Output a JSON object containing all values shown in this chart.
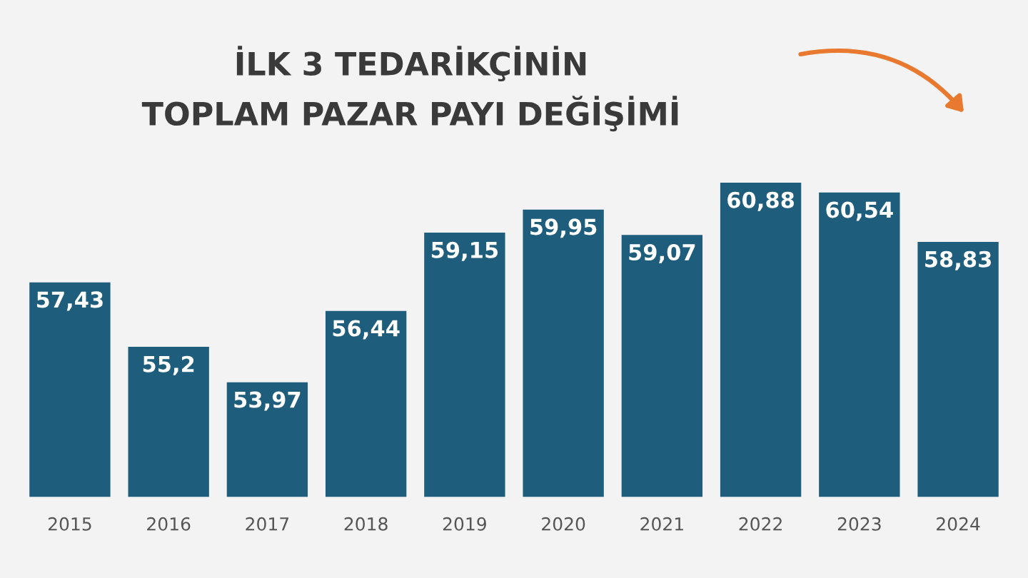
{
  "chart_data": {
    "type": "bar",
    "title": "İLK 3 TEDARİKÇİNİN\nTOPLAM PAZAR PAYI DEĞİŞİMİ",
    "categories": [
      "2015",
      "2016",
      "2017",
      "2018",
      "2019",
      "2020",
      "2021",
      "2022",
      "2023",
      "2024"
    ],
    "values": [
      57.43,
      55.2,
      53.97,
      56.44,
      59.15,
      59.95,
      59.07,
      60.88,
      60.54,
      58.83
    ],
    "value_labels": [
      "57,43",
      "55,2",
      "53,97",
      "56,44",
      "59,15",
      "59,95",
      "59,07",
      "60,88",
      "60,54",
      "58,83"
    ],
    "color": "#1e5d7c",
    "ylim": [
      50,
      60.88
    ],
    "tick_labels": "x",
    "grid": false,
    "legend": false
  }
}
